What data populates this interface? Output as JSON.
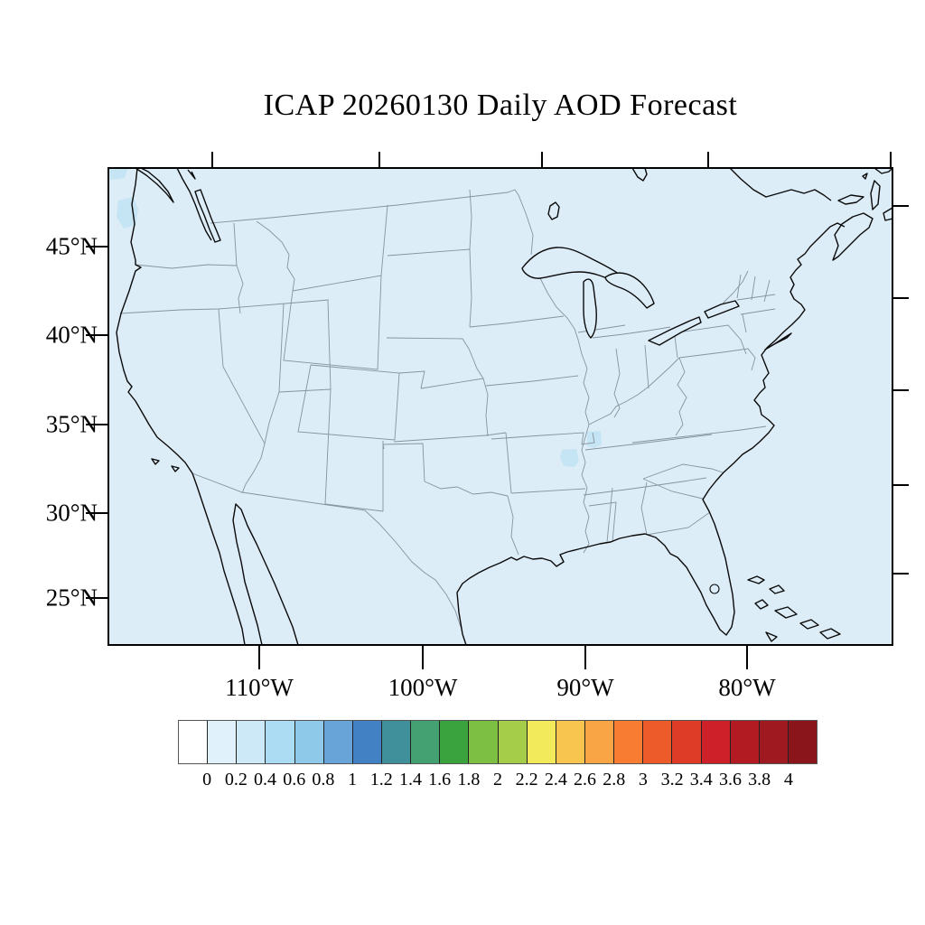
{
  "title": "ICAP 20260130 Daily AOD Forecast",
  "axes": {
    "lat_tick_labels": [
      "45°N",
      "40°N",
      "35°N",
      "30°N",
      "25°N"
    ],
    "lon_tick_labels": [
      "110°W",
      "100°W",
      "90°W",
      "80°W"
    ]
  },
  "colorbar": {
    "tick_labels": [
      "0",
      "0.2",
      "0.4",
      "0.6",
      "0.8",
      "1",
      "1.2",
      "1.4",
      "1.6",
      "1.8",
      "2",
      "2.2",
      "2.4",
      "2.6",
      "2.8",
      "3",
      "3.2",
      "3.4",
      "3.6",
      "3.8",
      "4"
    ],
    "cell_colors": [
      "#ffffff",
      "#e0f1fb",
      "#cde9f7",
      "#abdcf3",
      "#8ec9e9",
      "#68a4d8",
      "#4181c4",
      "#3f909b",
      "#44a272",
      "#3ba33d",
      "#7cbf43",
      "#a6cd4a",
      "#f2e95b",
      "#f8c54f",
      "#f9a445",
      "#f87d33",
      "#ee5b2b",
      "#df3c27",
      "#ce2028",
      "#b31b23",
      "#9e1920",
      "#8a151b"
    ]
  },
  "map": {
    "background_fill": "#dcedf8",
    "aod_low_patch_color": "#c5e4f4",
    "coastline_color": "#000000",
    "state_border_color": "#8494a0"
  },
  "chart_data": {
    "type": "heatmap",
    "title": "ICAP 20260130 Daily AOD Forecast",
    "region": "Continental United States",
    "projection_extent": {
      "lat_ticks_deg_n": [
        45,
        40,
        35,
        30,
        25
      ],
      "lon_ticks_deg_w": [
        110,
        100,
        90,
        80
      ]
    },
    "colorbar_levels": [
      0,
      0.2,
      0.4,
      0.6,
      0.8,
      1,
      1.2,
      1.4,
      1.6,
      1.8,
      2,
      2.2,
      2.4,
      2.6,
      2.8,
      3,
      3.2,
      3.4,
      3.6,
      3.8,
      4
    ],
    "colorbar_colors": [
      "#ffffff",
      "#e0f1fb",
      "#cde9f7",
      "#abdcf3",
      "#8ec9e9",
      "#68a4d8",
      "#4181c4",
      "#3f909b",
      "#44a272",
      "#3ba33d",
      "#7cbf43",
      "#a6cd4a",
      "#f2e95b",
      "#f8c54f",
      "#f9a445",
      "#f87d33",
      "#ee5b2b",
      "#df3c27",
      "#ce2028",
      "#b31b23",
      "#9e1920",
      "#8a151b"
    ],
    "field_summary": "Aerosol optical depth below 0.2 over nearly the entire domain (uniform palest-blue fill)",
    "anomalies": [
      {
        "approx_location": "Missouri/Kentucky/Tennessee border near New Madrid",
        "aod_range": "0.2-0.4"
      },
      {
        "approx_location": "Northeast Arkansas / Missouri bootheel",
        "aod_range": "0.2-0.4"
      },
      {
        "approx_location": "Offshore Washington coast",
        "aod_range": "0.2-0.4"
      }
    ]
  }
}
